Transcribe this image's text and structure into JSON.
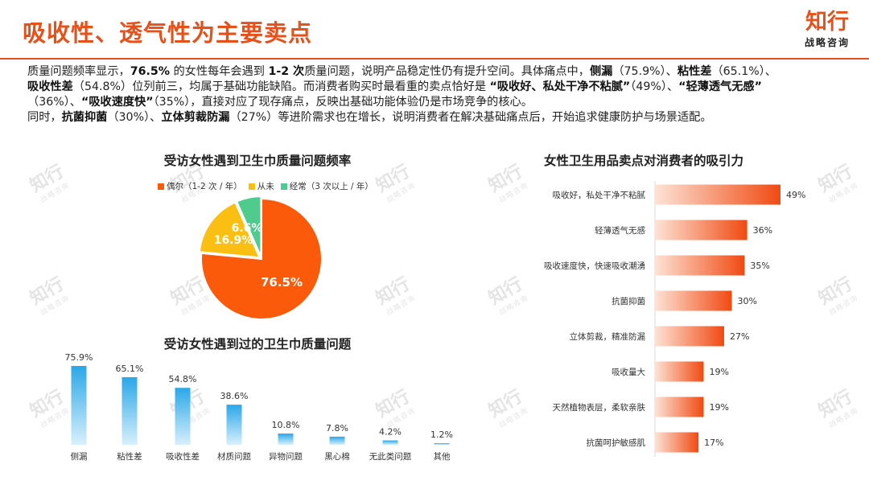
{
  "header": {
    "title": "吸收性、透气性为主要卖点",
    "brand_mark": "知行",
    "brand_sub": "战略咨询"
  },
  "summary": {
    "l1": [
      {
        "t": "质量问题频率显示，",
        "b": false
      },
      {
        "t": "76.5%",
        "b": true
      },
      {
        "t": " 的女性每年会遇到 ",
        "b": false
      },
      {
        "t": "1-2 次",
        "b": true
      },
      {
        "t": "质量问题，说明产品稳定性仍有提升空间。具体痛点中，",
        "b": false
      },
      {
        "t": "侧漏",
        "b": true
      },
      {
        "t": "（75.9%）、",
        "b": false
      },
      {
        "t": "粘性差",
        "b": true
      },
      {
        "t": "（65.1%）、",
        "b": false
      }
    ],
    "l2": [
      {
        "t": "吸收性差",
        "b": true
      },
      {
        "t": "（54.8%）位列前三，均属于基础功能缺陷。而消费者购买时最看重的卖点恰好是 ",
        "b": false
      },
      {
        "t": "“吸收好、私处干净不粘腻”",
        "b": true
      },
      {
        "t": "（49%）、",
        "b": false
      },
      {
        "t": "“轻薄透气无感”",
        "b": true
      }
    ],
    "l3": [
      {
        "t": "（36%）、",
        "b": false
      },
      {
        "t": "“吸收速度快”",
        "b": true
      },
      {
        "t": "（35%），直接对应了现存痛点，反映出基础功能体验仍是市场竞争的核心。",
        "b": false
      }
    ],
    "l4": [
      {
        "t": "同时，",
        "b": false
      },
      {
        "t": "抗菌抑菌",
        "b": true
      },
      {
        "t": "（30%）、",
        "b": false
      },
      {
        "t": "立体剪裁防漏",
        "b": true
      },
      {
        "t": "（27%）等进阶需求也在增长，说明消费者在解决基础痛点后，开始追求健康防护与场景适配。",
        "b": false
      }
    ]
  },
  "watermark": {
    "main": "知行",
    "sub": "战略咨询"
  },
  "colors": {
    "accent": "#e8501a",
    "pie_orange": "#fa5a0a",
    "pie_yellow": "#fbbf14",
    "pie_green": "#4ecb8d",
    "bar_blue": "#2aa7e8"
  },
  "chart_data": [
    {
      "type": "pie",
      "title": "受访女性遇到卫生巾质量问题频率",
      "labels": [
        "偶尔（1-2 次 / 年）",
        "从未",
        "经常（3 次以上 / 年）"
      ],
      "values": [
        76.5,
        16.9,
        6.6
      ],
      "value_labels": [
        "76.5%",
        "16.9%",
        "6.6%"
      ],
      "legend_position": "top"
    },
    {
      "type": "bar",
      "title": "受访女性遇到过的卫生巾质量问题",
      "categories": [
        "侧漏",
        "粘性差",
        "吸收性差",
        "材质问题",
        "异物问题",
        "黑心棉",
        "无此类问题",
        "其他"
      ],
      "values": [
        75.9,
        65.1,
        54.8,
        38.6,
        10.8,
        7.8,
        4.2,
        1.2
      ],
      "value_labels": [
        "75.9%",
        "65.1%",
        "54.8%",
        "38.6%",
        "10.8%",
        "7.8%",
        "4.2%",
        "1.2%"
      ],
      "ylim": [
        0,
        80
      ],
      "grid": false
    },
    {
      "type": "bar",
      "orientation": "horizontal",
      "title": "女性卫生用品卖点对消费者的吸引力",
      "categories": [
        "吸收好，私处干净不粘腻",
        "轻薄透气无感",
        "吸收速度快，快速吸收潮湧",
        "抗菌抑菌",
        "立体剪裁，精准防漏",
        "吸收量大",
        "天然植物表层，柔软亲肤",
        "抗菌呵护敏感肌"
      ],
      "values": [
        49,
        36,
        35,
        30,
        27,
        19,
        19,
        17
      ],
      "value_labels": [
        "49%",
        "36%",
        "35%",
        "30%",
        "27%",
        "19%",
        "19%",
        "17%"
      ],
      "xlim": [
        0,
        50
      ],
      "grid": false
    }
  ]
}
